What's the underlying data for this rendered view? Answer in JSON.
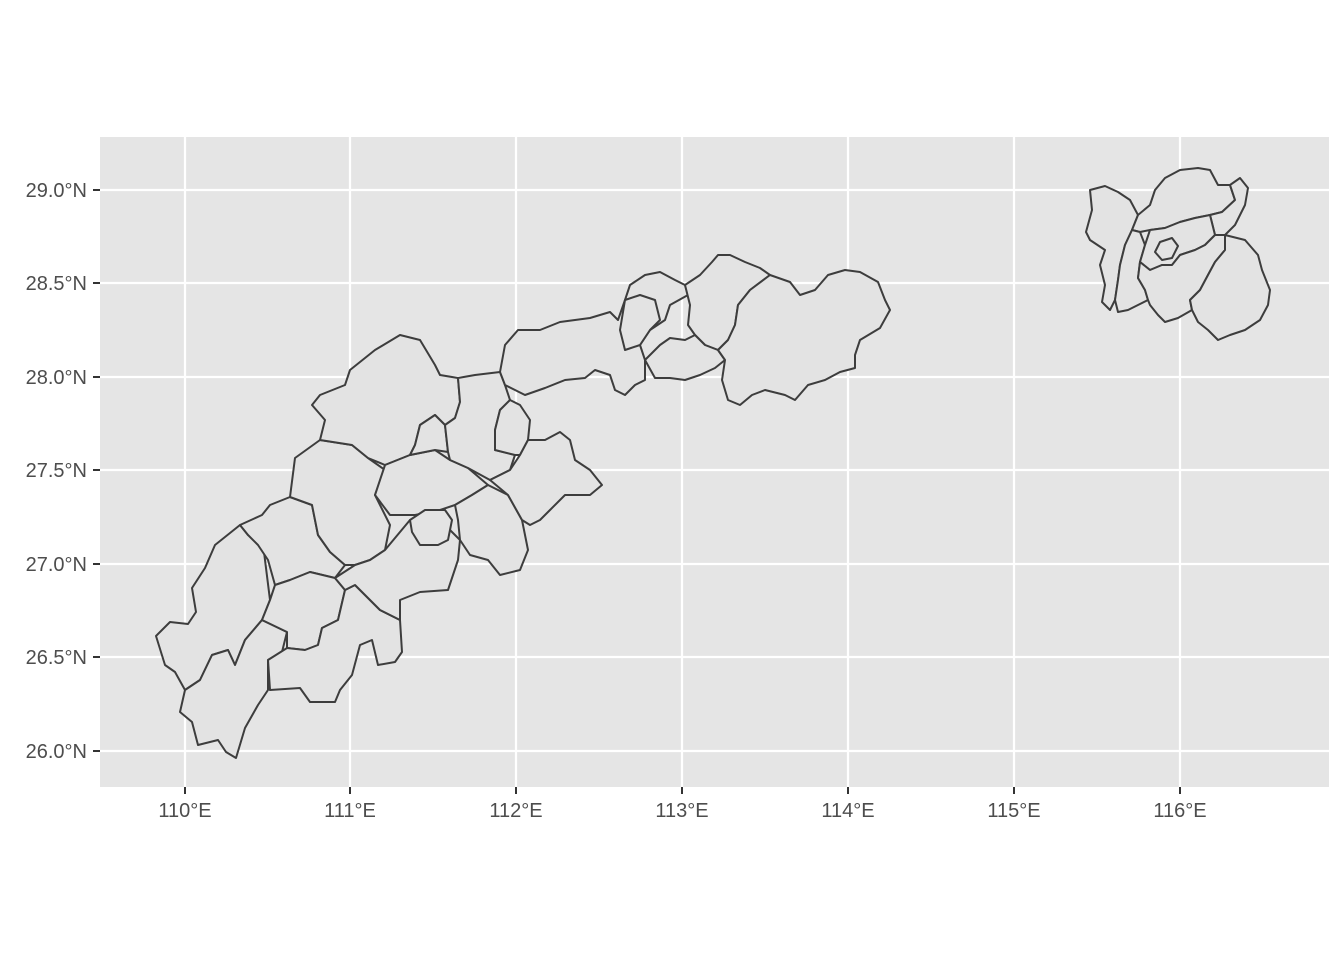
{
  "map": {
    "x_axis": {
      "tick_labels": [
        "110°E",
        "111°E",
        "112°E",
        "113°E",
        "114°E",
        "115°E",
        "116°E"
      ]
    },
    "y_axis": {
      "tick_labels": [
        "29.0°N",
        "28.5°N",
        "28.0°N",
        "27.5°N",
        "27.0°N",
        "26.5°N",
        "26.0°N"
      ]
    },
    "colors": {
      "panel_background": "#e5e5e5",
      "grid": "#ffffff",
      "region_fill": "#e3e3e3",
      "region_border": "#3d3d3d",
      "tick_label": "#4d4d4d"
    }
  }
}
